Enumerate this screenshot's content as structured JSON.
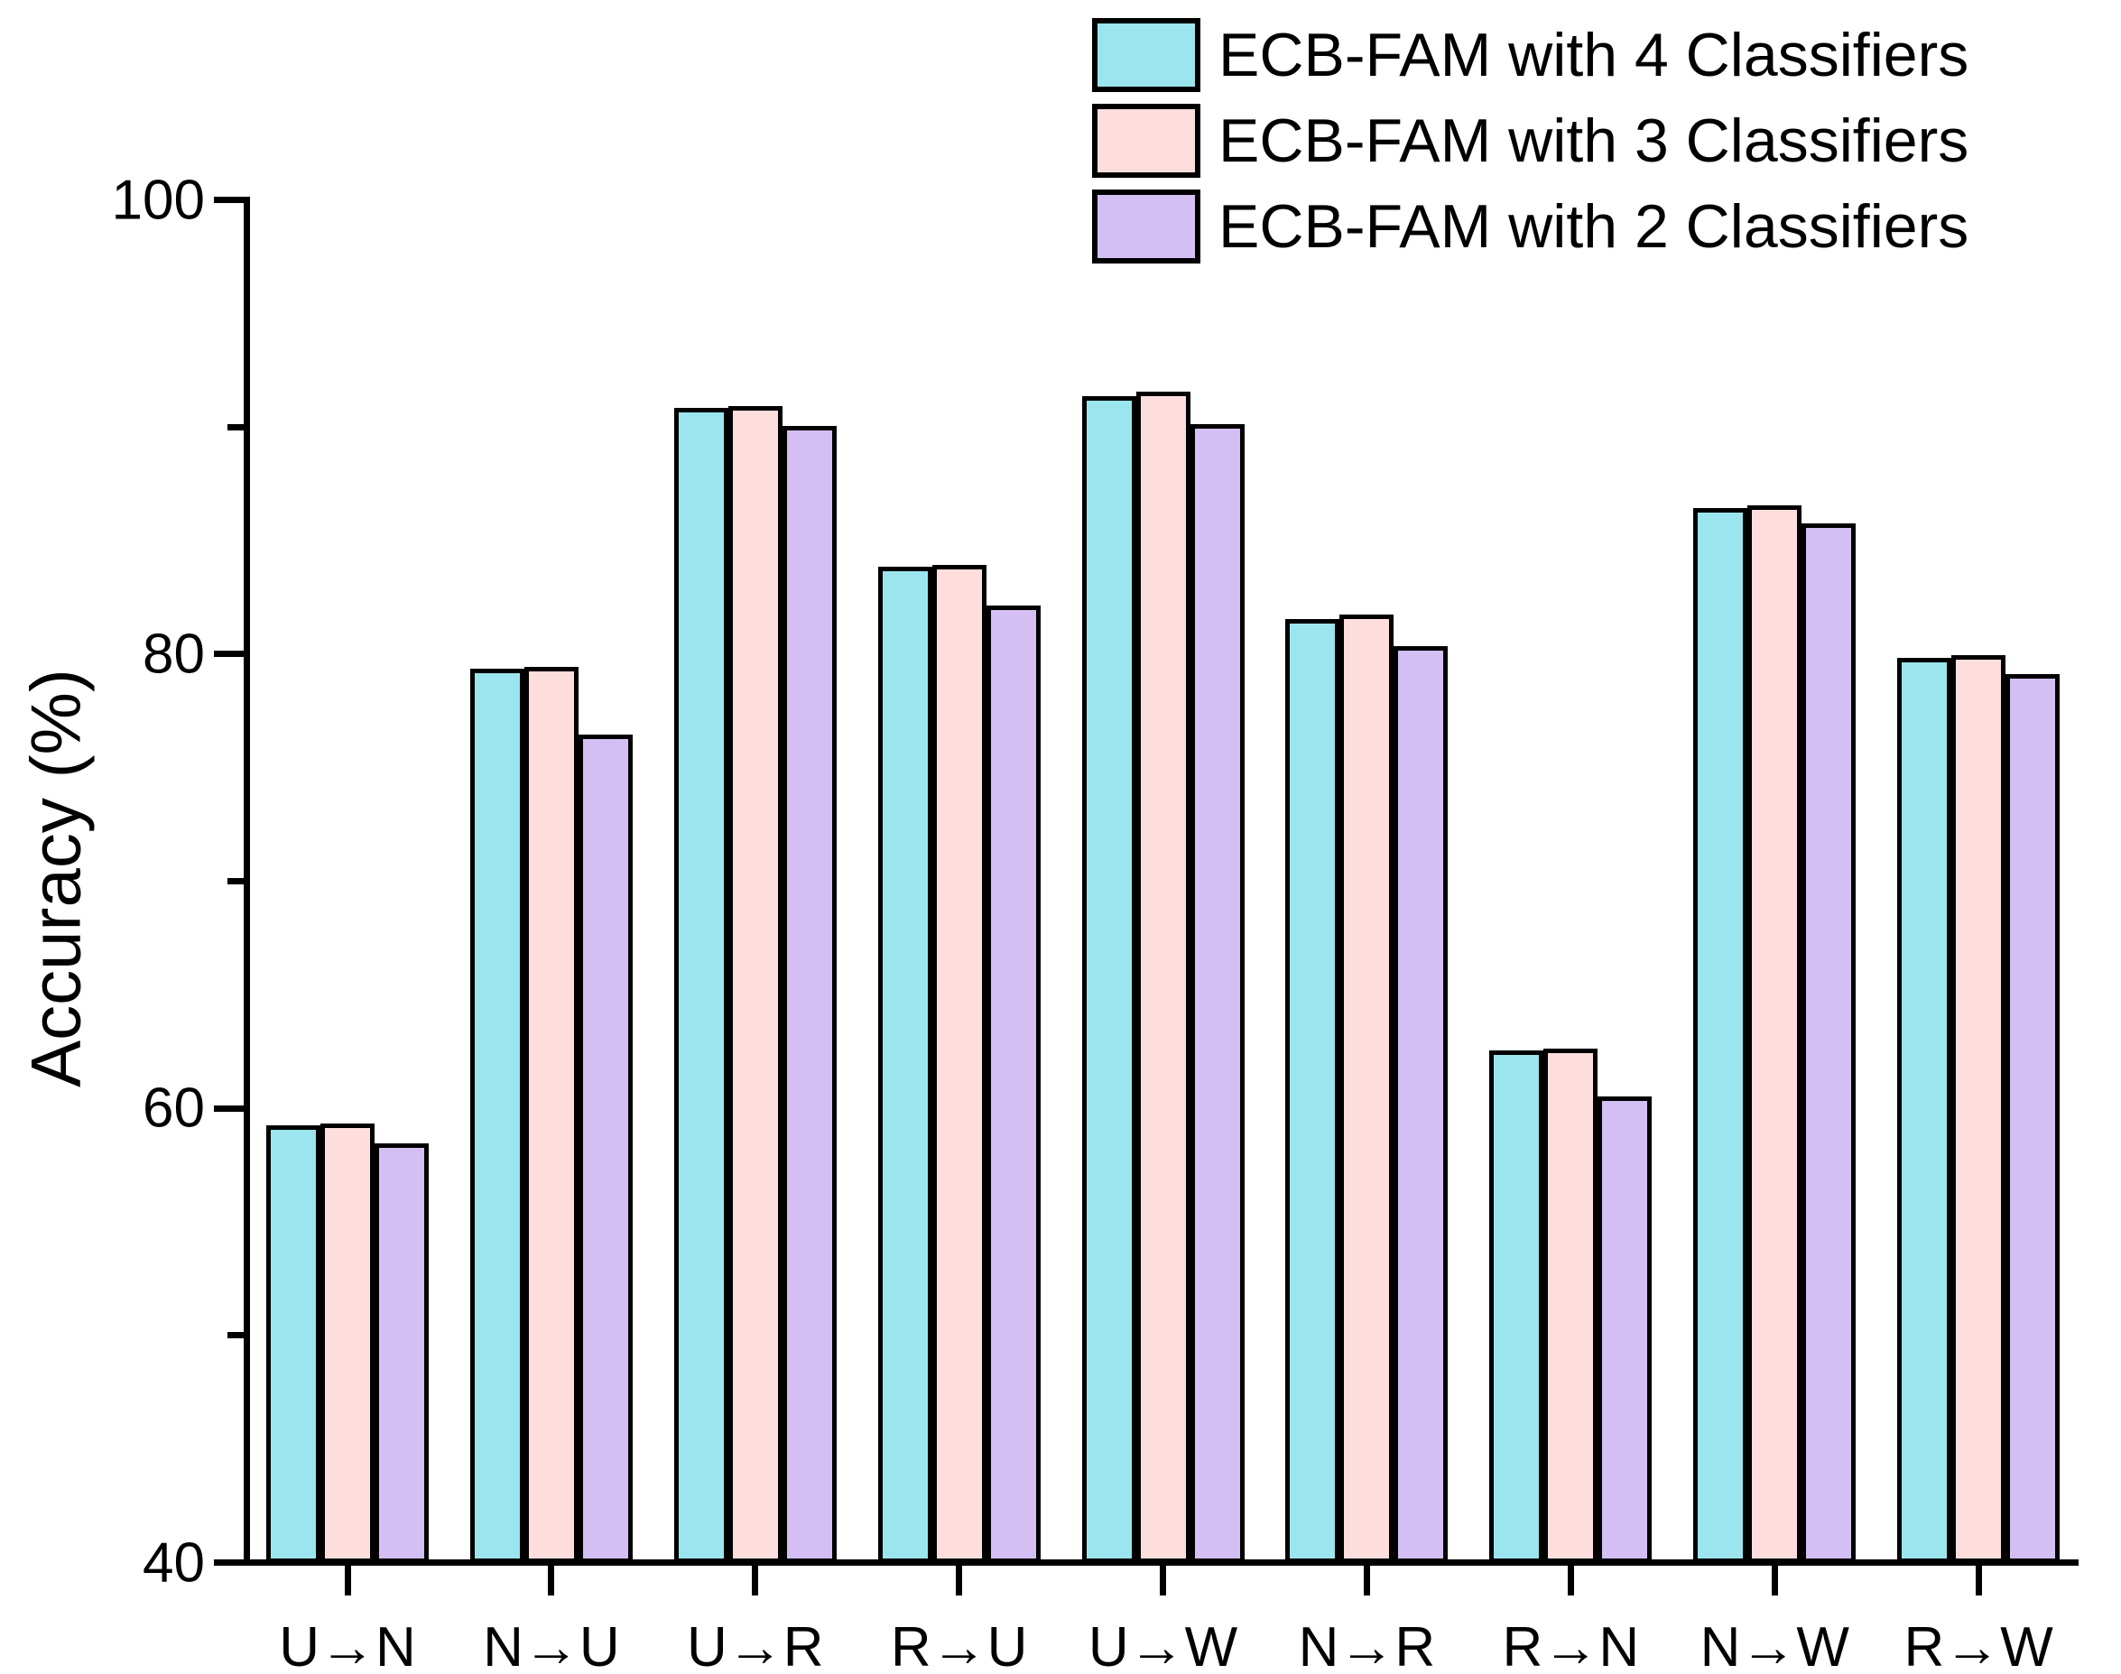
{
  "chart_data": {
    "type": "bar",
    "title": "",
    "xlabel": "",
    "ylabel": "Accuracy (%)",
    "ylim": [
      40,
      100
    ],
    "yticks_major": [
      40,
      60,
      80,
      100
    ],
    "yticks_minor": [
      50,
      70,
      90
    ],
    "grid": false,
    "legend_position": "top-right",
    "bar_border_color": "#000000",
    "categories": [
      "U→N",
      "N→U",
      "U→R",
      "R→U",
      "U→W",
      "N→R",
      "R→N",
      "N→W",
      "R→W"
    ],
    "series": [
      {
        "name": "ECB-FAM with 4 Classifiers",
        "color": "#9BE5EE",
        "values": [
          59.1,
          79.2,
          90.7,
          83.7,
          91.2,
          81.4,
          62.4,
          86.3,
          79.7
        ]
      },
      {
        "name": "ECB-FAM with 3 Classifiers",
        "color": "#FDDEDD",
        "values": [
          59.2,
          79.3,
          90.8,
          83.8,
          91.4,
          81.6,
          62.5,
          86.4,
          79.8
        ]
      },
      {
        "name": "ECB-FAM with 2 Classifiers",
        "color": "#D4BFF4",
        "values": [
          58.3,
          76.3,
          89.9,
          82.0,
          90.0,
          80.2,
          60.4,
          85.6,
          79.0
        ]
      }
    ]
  }
}
